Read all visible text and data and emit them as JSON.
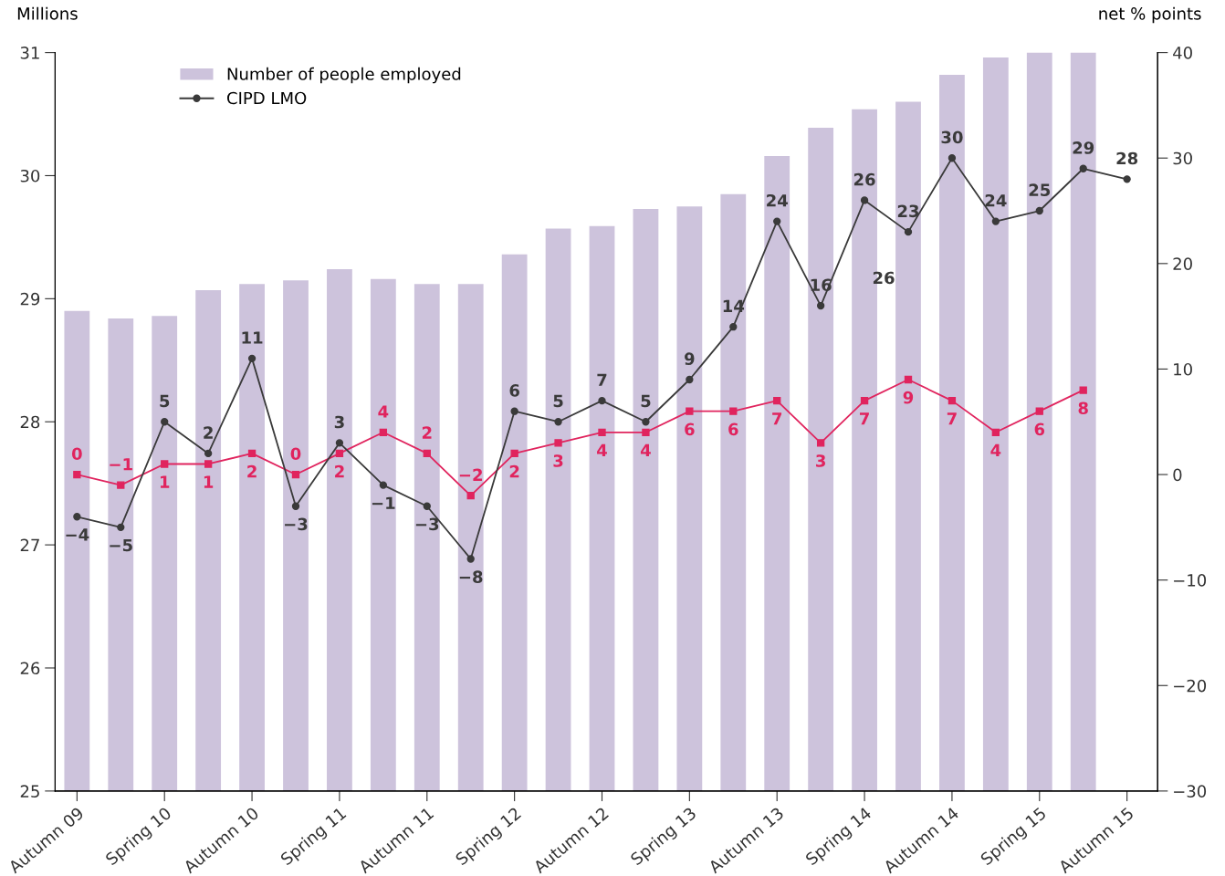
{
  "chart_data": {
    "type": "bar",
    "categories": [
      "Autumn 09",
      null,
      "Spring 10",
      null,
      "Autumn 10",
      null,
      "Spring 11",
      null,
      "Autumn 11",
      null,
      "Spring 12",
      null,
      "Autumn 12",
      null,
      "Spring 13",
      null,
      "Autumn 13",
      null,
      "Spring 14",
      null,
      "Autumn 14",
      null,
      "Spring 15",
      null,
      "Autumn 15"
    ],
    "ylabel": "Millions",
    "y2label": "net % points",
    "ylim": [
      25,
      31
    ],
    "yticks": [
      25,
      26,
      27,
      28,
      29,
      30,
      31
    ],
    "y2lim": [
      -30,
      40
    ],
    "y2ticks": [
      -30,
      -20,
      -10,
      0,
      10,
      20,
      30,
      40
    ],
    "grid": false,
    "legend": "top left",
    "marker": "circle",
    "series": [
      {
        "name": "Number of people employed",
        "color": "#cdc3dc",
        "values": [
          28.9,
          28.84,
          28.86,
          29.07,
          29.12,
          29.15,
          29.24,
          29.16,
          29.12,
          29.12,
          29.36,
          29.57,
          29.59,
          29.73,
          29.75,
          29.85,
          30.16,
          30.39,
          30.54,
          30.6,
          30.82,
          30.96,
          31.0,
          31.0,
          null
        ]
      },
      {
        "type": "line",
        "axis": "y2",
        "color": "#e0245e",
        "marker": "square",
        "data_labels": true,
        "values": [
          0,
          -1,
          1,
          1,
          2,
          0,
          2,
          4,
          2,
          -2,
          2,
          3,
          4,
          4,
          6,
          6,
          7,
          3,
          7,
          9,
          7,
          4,
          6,
          8,
          null
        ]
      },
      {
        "name": "CIPD LMO",
        "type": "line",
        "axis": "y2",
        "color": "#3a3a3a",
        "data_labels": true,
        "values": [
          -4,
          -5,
          5,
          2,
          11,
          -3,
          3,
          -1,
          -3,
          -8,
          6,
          5,
          7,
          5,
          9,
          14,
          24,
          16,
          26,
          23,
          30,
          24,
          25,
          29,
          28
        ]
      }
    ],
    "annotations": [
      "26"
    ]
  }
}
